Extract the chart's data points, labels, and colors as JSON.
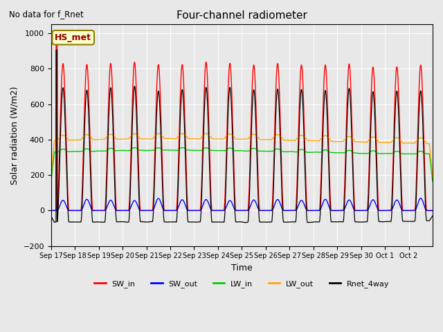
{
  "title": "Four-channel radiometer",
  "top_left_text": "No data for f_Rnet",
  "annotation_text": "HS_met",
  "xlabel": "Time",
  "ylabel": "Solar radiation (W/m2)",
  "ylim": [
    -200,
    1050
  ],
  "n_days": 16,
  "x_tick_labels": [
    "Sep 17",
    "Sep 18",
    "Sep 19",
    "Sep 20",
    "Sep 21",
    "Sep 22",
    "Sep 23",
    "Sep 24",
    "Sep 25",
    "Sep 26",
    "Sep 27",
    "Sep 28",
    "Sep 29",
    "Sep 30",
    "Oct 1",
    "Oct 2"
  ],
  "bg_color": "#e8e8e8",
  "plot_bg_color": "#e8e8e8",
  "legend": [
    {
      "label": "SW_in",
      "color": "#ff0000"
    },
    {
      "label": "SW_out",
      "color": "#0000ff"
    },
    {
      "label": "LW_in",
      "color": "#00cc00"
    },
    {
      "label": "LW_out",
      "color": "#ffa500"
    },
    {
      "label": "Rnet_4way",
      "color": "#000000"
    }
  ],
  "series_colors": {
    "SW_in": "#ff0000",
    "SW_out": "#0000ff",
    "LW_in": "#00cc00",
    "LW_out": "#ffa500",
    "Rnet_4way": "#000000"
  },
  "lw_in_base": 330,
  "lw_out_base": 390
}
